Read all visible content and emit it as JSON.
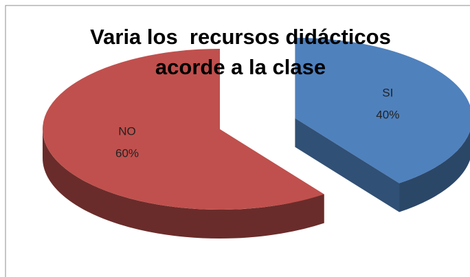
{
  "chart_data": {
    "type": "pie",
    "title": "Varia los  recursos didácticos acorde a la clase",
    "categories": [
      "SI",
      "NO"
    ],
    "values": [
      40,
      60
    ],
    "value_labels": [
      "40%",
      "60%"
    ],
    "colors": [
      "#4f81bd",
      "#c0504d"
    ],
    "three_d": true,
    "exploded": true
  }
}
